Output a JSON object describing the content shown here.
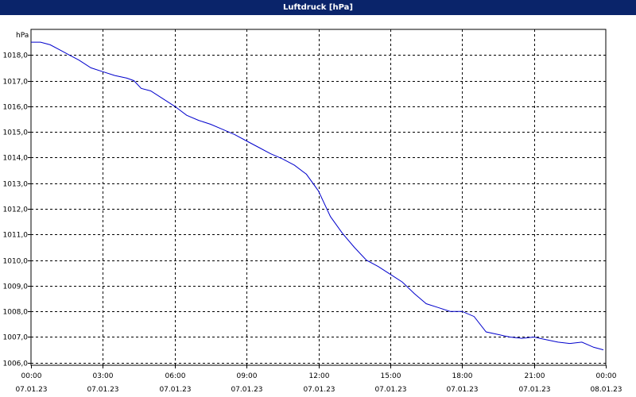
{
  "window": {
    "title": "Luftdruck [hPa]"
  },
  "chart_data": {
    "type": "line",
    "title": "Luftdruck [hPa]",
    "ylabel": "hPa",
    "xlabel": "",
    "ylim": [
      1005.9,
      1019.0
    ],
    "xlim": [
      0,
      24
    ],
    "grid": true,
    "line_color": "#0000cc",
    "y_ticks": [
      1006.0,
      1007.0,
      1008.0,
      1009.0,
      1010.0,
      1011.0,
      1012.0,
      1013.0,
      1014.0,
      1015.0,
      1016.0,
      1017.0,
      1018.0
    ],
    "y_tick_labels": [
      "1006,0",
      "1007,0",
      "1008,0",
      "1009,0",
      "1010,0",
      "1011,0",
      "1012,0",
      "1013,0",
      "1014,0",
      "1015,0",
      "1016,0",
      "1017,0",
      "1018,0"
    ],
    "x_ticks": [
      {
        "hour": 0,
        "time": "00:00",
        "date": "07.01.23"
      },
      {
        "hour": 3,
        "time": "03:00",
        "date": "07.01.23"
      },
      {
        "hour": 6,
        "time": "06:00",
        "date": "07.01.23"
      },
      {
        "hour": 9,
        "time": "09:00",
        "date": "07.01.23"
      },
      {
        "hour": 12,
        "time": "12:00",
        "date": "07.01.23"
      },
      {
        "hour": 15,
        "time": "15:00",
        "date": "07.01.23"
      },
      {
        "hour": 18,
        "time": "18:00",
        "date": "07.01.23"
      },
      {
        "hour": 21,
        "time": "21:00",
        "date": "07.01.23"
      },
      {
        "hour": 24,
        "time": "00:00",
        "date": "08.01.23"
      }
    ],
    "series": [
      {
        "x": [
          0,
          0.4,
          0.8,
          1.2,
          1.6,
          2.0,
          2.5,
          3.0,
          3.5,
          4.0,
          4.3,
          4.6,
          5.0,
          5.5,
          6.0,
          6.5,
          7.0,
          7.5,
          8.0,
          8.5,
          9.0,
          9.5,
          10.0,
          10.5,
          11.0,
          11.5,
          12.0,
          12.5,
          13.0,
          13.5,
          14.0,
          14.5,
          15.0,
          15.5,
          16.0,
          16.5,
          17.0,
          17.5,
          18.0,
          18.5,
          19.0,
          19.5,
          20.0,
          20.5,
          21.0,
          21.5,
          22.0,
          22.5,
          23.0,
          23.5,
          23.9
        ],
        "y": [
          1018.5,
          1018.5,
          1018.4,
          1018.2,
          1018.0,
          1017.8,
          1017.5,
          1017.35,
          1017.2,
          1017.1,
          1017.0,
          1016.7,
          1016.6,
          1016.3,
          1016.0,
          1015.65,
          1015.45,
          1015.3,
          1015.1,
          1014.9,
          1014.65,
          1014.4,
          1014.15,
          1013.95,
          1013.7,
          1013.35,
          1012.7,
          1011.7,
          1011.05,
          1010.5,
          1010.0,
          1009.75,
          1009.45,
          1009.15,
          1008.7,
          1008.3,
          1008.15,
          1008.0,
          1008.0,
          1007.8,
          1007.2,
          1007.1,
          1007.0,
          1006.95,
          1007.0,
          1006.9,
          1006.8,
          1006.75,
          1006.8,
          1006.6,
          1006.5
        ]
      }
    ]
  }
}
